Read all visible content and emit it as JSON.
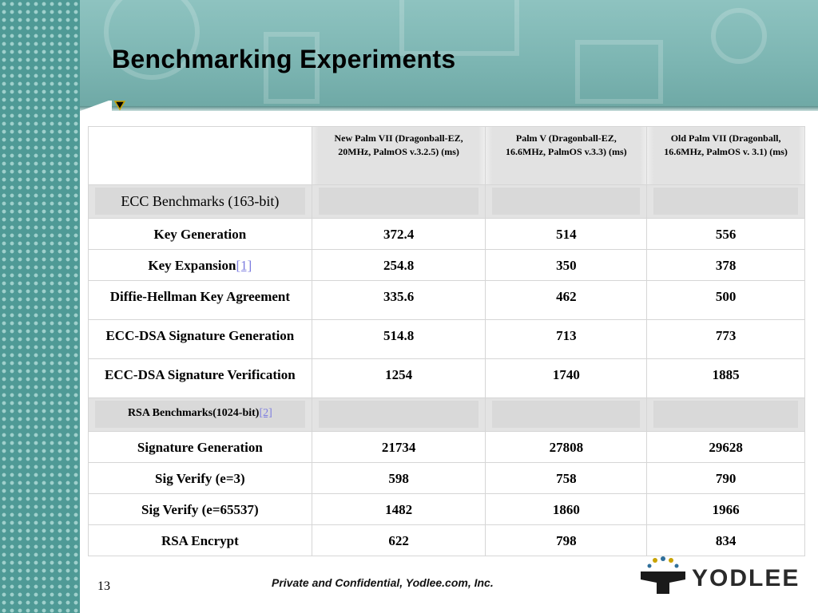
{
  "slide": {
    "title": "Benchmarking Experiments",
    "page_number": "13",
    "footer": "Private  and Confidential, Yodlee.com, Inc.",
    "logo_text": "YODLEE"
  },
  "table": {
    "headers": [
      "",
      "New Palm VII (Dragonball-EZ, 20MHz, PalmOS v.3.2.5) (ms)",
      "Palm V (Dragonball-EZ, 16.6MHz, PalmOS v.3.3) (ms)",
      "Old Palm VII (Dragonball, 16.6MHz, PalmOS v. 3.1) (ms)"
    ],
    "ecc_section": "ECC Benchmarks (163-bit)",
    "ecc_rows": [
      {
        "label": "Key Generation",
        "footnote": "",
        "values": [
          "372.4",
          "514",
          "556"
        ]
      },
      {
        "label": "Key Expansion",
        "footnote": "[1]",
        "values": [
          "254.8",
          "350",
          "378"
        ]
      },
      {
        "label": "Diffie-Hellman Key Agreement",
        "footnote": "",
        "values": [
          "335.6",
          "462",
          "500"
        ]
      },
      {
        "label": "ECC-DSA Signature Generation",
        "footnote": "",
        "values": [
          "514.8",
          "713",
          "773"
        ]
      },
      {
        "label": "ECC-DSA Signature Verification",
        "footnote": "",
        "values": [
          "1254",
          "1740",
          "1885"
        ]
      }
    ],
    "rsa_section": "RSA Benchmarks(1024-bit)",
    "rsa_footnote": "[2]",
    "rsa_rows": [
      {
        "label": "Signature Generation",
        "values": [
          "21734",
          "27808",
          "29628"
        ]
      },
      {
        "label": "Sig Verify (e=3)",
        "values": [
          "598",
          "758",
          "790"
        ]
      },
      {
        "label": "Sig Verify (e=65537)",
        "values": [
          "1482",
          "1860",
          "1966"
        ]
      },
      {
        "label": "RSA Encrypt",
        "values": [
          "622",
          "798",
          "834"
        ]
      }
    ]
  },
  "colors": {
    "teal_band": "#7cb5b2",
    "left_strip": "#4f9a96",
    "section_shade": "#d9d9d9",
    "footnote_link": "#7d7de0"
  }
}
